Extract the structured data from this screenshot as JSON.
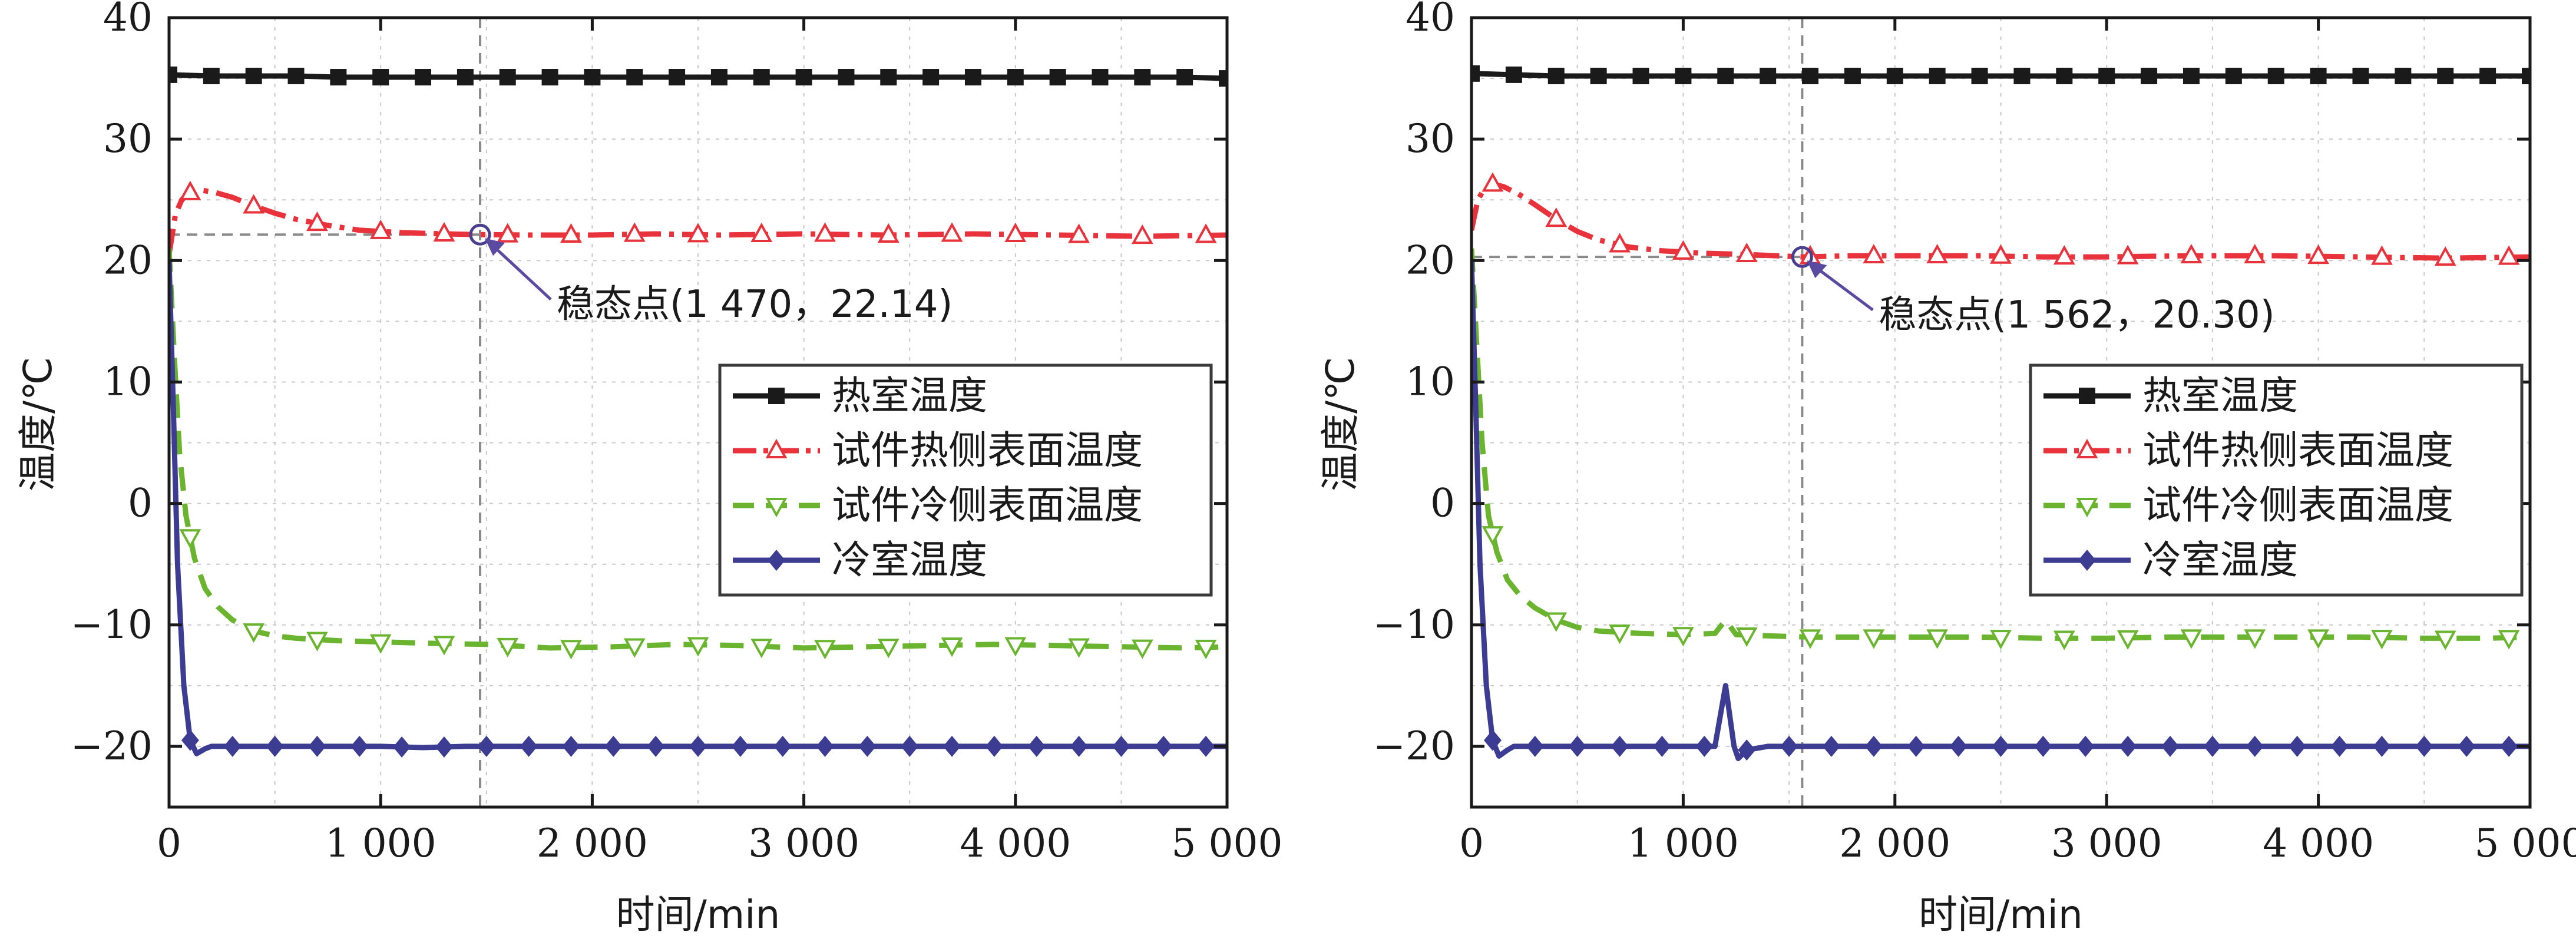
{
  "chart_data": [
    {
      "type": "line",
      "xlabel": "时间/min",
      "ylabel": "温度/℃",
      "xlim": [
        0,
        5000
      ],
      "ylim": [
        -25,
        40
      ],
      "xticks": [
        0,
        1000,
        2000,
        3000,
        4000,
        5000
      ],
      "xtick_labels": [
        "0",
        "1 000",
        "2 000",
        "3 000",
        "4 000",
        "5 000"
      ],
      "yticks": [
        -20,
        -10,
        0,
        10,
        20,
        30,
        40
      ],
      "ytick_labels": [
        "−20",
        "−10",
        "0",
        "10",
        "20",
        "30",
        "40"
      ],
      "grid": true,
      "legend_position": "center-right",
      "steady_point": {
        "x": 1470,
        "y": 22.14,
        "label": "稳态点(1 470，22.14)"
      },
      "series": [
        {
          "name": "热室温度",
          "color": "#1a1a1a",
          "marker": "square",
          "x": [
            0,
            200,
            400,
            600,
            800,
            1000,
            1200,
            1400,
            1600,
            1800,
            2000,
            2200,
            2400,
            2600,
            2800,
            3000,
            3200,
            3400,
            3600,
            3800,
            4000,
            4200,
            4400,
            4600,
            4800,
            5000
          ],
          "y": [
            35.3,
            35.2,
            35.2,
            35.2,
            35.1,
            35.1,
            35.1,
            35.1,
            35.1,
            35.1,
            35.1,
            35.1,
            35.1,
            35.1,
            35.1,
            35.1,
            35.1,
            35.1,
            35.1,
            35.1,
            35.1,
            35.1,
            35.1,
            35.1,
            35.1,
            35.0
          ]
        },
        {
          "name": "试件热侧表面温度",
          "color": "#e8323c",
          "marker": "triangle-up",
          "x": [
            0,
            30,
            60,
            100,
            150,
            220,
            300,
            400,
            500,
            600,
            750,
            900,
            1100,
            1300,
            1470,
            1700,
            2000,
            2300,
            2600,
            3000,
            3400,
            3800,
            4200,
            4600,
            5000
          ],
          "y": [
            20.5,
            23.8,
            25.0,
            25.6,
            25.8,
            25.6,
            25.2,
            24.5,
            23.9,
            23.4,
            22.9,
            22.5,
            22.3,
            22.2,
            22.14,
            22.1,
            22.1,
            22.2,
            22.1,
            22.2,
            22.1,
            22.2,
            22.1,
            22.0,
            22.1
          ]
        },
        {
          "name": "试件冷侧表面温度",
          "color": "#6ab42f",
          "marker": "triangle-down",
          "x": [
            0,
            25,
            50,
            80,
            120,
            170,
            230,
            300,
            400,
            500,
            600,
            800,
            1000,
            1200,
            1500,
            1800,
            2100,
            2400,
            2700,
            3000,
            3300,
            3600,
            3900,
            4200,
            4500,
            4800,
            5000
          ],
          "y": [
            21.0,
            12.0,
            4.0,
            -1.0,
            -4.5,
            -7.0,
            -8.5,
            -9.6,
            -10.5,
            -10.9,
            -11.1,
            -11.3,
            -11.4,
            -11.5,
            -11.6,
            -11.9,
            -11.8,
            -11.6,
            -11.7,
            -11.9,
            -11.8,
            -11.7,
            -11.6,
            -11.7,
            -11.8,
            -11.9,
            -11.8
          ]
        },
        {
          "name": "冷室温度",
          "color": "#3c3c92",
          "marker": "diamond",
          "x": [
            0,
            20,
            40,
            70,
            100,
            130,
            170,
            200,
            400,
            600,
            800,
            1000,
            1200,
            1400,
            1600,
            1800,
            2000,
            2400,
            2800,
            3200,
            3600,
            4000,
            4400,
            4800,
            5000
          ],
          "y": [
            20.0,
            8.0,
            -5.0,
            -15.0,
            -19.5,
            -20.6,
            -20.2,
            -20.0,
            -20.0,
            -20.0,
            -20.0,
            -20.0,
            -20.1,
            -20.0,
            -20.0,
            -20.0,
            -20.0,
            -20.0,
            -20.0,
            -20.0,
            -20.0,
            -20.0,
            -20.0,
            -20.0,
            -20.0
          ]
        }
      ]
    },
    {
      "type": "line",
      "xlabel": "时间/min",
      "ylabel": "温度/℃",
      "xlim": [
        0,
        5000
      ],
      "ylim": [
        -25,
        40
      ],
      "xticks": [
        0,
        1000,
        2000,
        3000,
        4000,
        5000
      ],
      "xtick_labels": [
        "0",
        "1 000",
        "2 000",
        "3 000",
        "4 000",
        "5 000"
      ],
      "yticks": [
        -20,
        -10,
        0,
        10,
        20,
        30,
        40
      ],
      "ytick_labels": [
        "−20",
        "−10",
        "0",
        "10",
        "20",
        "30",
        "40"
      ],
      "grid": true,
      "legend_position": "center-right",
      "steady_point": {
        "x": 1562,
        "y": 20.3,
        "label": "稳态点(1 562，20.30)"
      },
      "series": [
        {
          "name": "热室温度",
          "color": "#1a1a1a",
          "marker": "square",
          "x": [
            0,
            200,
            400,
            600,
            800,
            1000,
            1200,
            1400,
            1600,
            1800,
            2000,
            2200,
            2400,
            2600,
            2800,
            3000,
            3200,
            3400,
            3600,
            3800,
            4000,
            4200,
            4400,
            4600,
            4800,
            5000
          ],
          "y": [
            35.4,
            35.3,
            35.2,
            35.2,
            35.2,
            35.2,
            35.2,
            35.2,
            35.2,
            35.2,
            35.2,
            35.2,
            35.2,
            35.2,
            35.2,
            35.2,
            35.2,
            35.2,
            35.2,
            35.2,
            35.2,
            35.2,
            35.2,
            35.2,
            35.2,
            35.2
          ]
        },
        {
          "name": "试件热侧表面温度",
          "color": "#e8323c",
          "marker": "triangle-up",
          "x": [
            0,
            30,
            60,
            100,
            150,
            220,
            300,
            400,
            500,
            600,
            750,
            900,
            1100,
            1300,
            1562,
            1800,
            2100,
            2400,
            2700,
            3000,
            3400,
            3800,
            4200,
            4600,
            5000
          ],
          "y": [
            22.5,
            25.0,
            25.9,
            26.3,
            26.1,
            25.5,
            24.6,
            23.4,
            22.4,
            21.7,
            21.1,
            20.8,
            20.6,
            20.5,
            20.3,
            20.4,
            20.4,
            20.4,
            20.3,
            20.3,
            20.4,
            20.4,
            20.3,
            20.2,
            20.3
          ]
        },
        {
          "name": "试件冷侧表面温度",
          "color": "#6ab42f",
          "marker": "triangle-down",
          "x": [
            0,
            25,
            50,
            80,
            120,
            170,
            230,
            300,
            400,
            500,
            600,
            800,
            1000,
            1150,
            1200,
            1250,
            1400,
            1600,
            1800,
            2100,
            2400,
            2700,
            3000,
            3300,
            3600,
            3900,
            4200,
            4500,
            4800,
            5000
          ],
          "y": [
            21.0,
            13.0,
            5.0,
            -1.0,
            -4.0,
            -6.3,
            -7.6,
            -8.6,
            -9.6,
            -10.2,
            -10.5,
            -10.7,
            -10.8,
            -10.7,
            -9.6,
            -10.8,
            -10.9,
            -11.0,
            -11.0,
            -11.0,
            -11.0,
            -11.1,
            -11.1,
            -11.0,
            -11.0,
            -11.0,
            -11.0,
            -11.1,
            -11.1,
            -11.0
          ]
        },
        {
          "name": "冷室温度",
          "color": "#3c3c92",
          "marker": "diamond",
          "x": [
            0,
            20,
            40,
            70,
            100,
            130,
            170,
            200,
            400,
            600,
            800,
            1000,
            1150,
            1195,
            1200,
            1240,
            1260,
            1300,
            1400,
            1600,
            1800,
            2000,
            2400,
            2800,
            3200,
            3600,
            4000,
            4400,
            4800,
            5000
          ],
          "y": [
            20.0,
            8.0,
            -5.0,
            -15.0,
            -19.5,
            -20.8,
            -20.3,
            -20.0,
            -20.0,
            -20.0,
            -20.0,
            -20.0,
            -20.0,
            -15.5,
            -15.0,
            -20.0,
            -21.0,
            -20.3,
            -20.0,
            -20.0,
            -20.0,
            -20.0,
            -20.0,
            -20.0,
            -20.0,
            -20.0,
            -20.0,
            -20.0,
            -20.0,
            -20.0
          ]
        }
      ]
    }
  ]
}
